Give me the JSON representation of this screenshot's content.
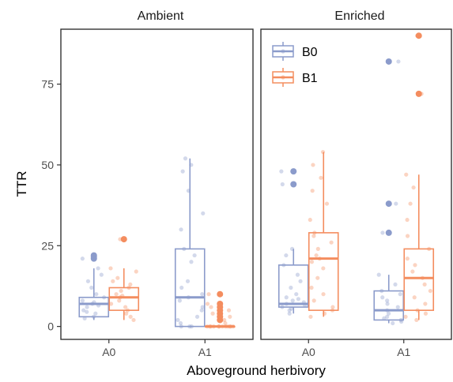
{
  "chart_data": {
    "type": "box",
    "xlabel": "Aboveground herbivory",
    "ylabel": "TTR",
    "ylim": [
      -4,
      92
    ],
    "yticks": [
      0,
      25,
      50,
      75
    ],
    "categories": [
      "A0",
      "A1"
    ],
    "panels": [
      "Ambient",
      "Enriched"
    ],
    "grid": false,
    "legend": {
      "placement": "top-left of Enriched panel",
      "entries": [
        "B0",
        "B1"
      ]
    },
    "series": [
      {
        "name": "B0",
        "color": "#8b9bcb",
        "boxes": [
          {
            "panel": "Ambient",
            "category": "A0",
            "q1": 3,
            "median": 7,
            "q3": 9,
            "whisker_low": 2,
            "whisker_high": 18,
            "outliers": [
              21,
              21.5,
              22
            ],
            "points": [
              3,
              4,
              5,
              6,
              7,
              7.5,
              8,
              9,
              10,
              12,
              14,
              16,
              18,
              21,
              22,
              4.5,
              6.5,
              2.5
            ]
          },
          {
            "panel": "Ambient",
            "category": "A1",
            "q1": 0,
            "median": 9,
            "q3": 24,
            "whisker_low": 0,
            "whisker_high": 52,
            "outliers": [],
            "points": [
              0,
              0,
              0,
              2,
              5,
              6,
              8,
              9,
              10,
              12,
              14,
              20,
              22,
              24,
              30,
              35,
              42,
              48,
              50,
              52,
              1,
              3
            ]
          },
          {
            "panel": "Enriched",
            "category": "A0",
            "q1": 6,
            "median": 7,
            "q3": 19,
            "whisker_low": 4,
            "whisker_high": 24,
            "outliers": [
              44,
              48
            ],
            "points": [
              4,
              5,
              6,
              6.5,
              7,
              7.5,
              8,
              9,
              10,
              12,
              14,
              16,
              19,
              22,
              24,
              44,
              48,
              5.5,
              8.5
            ]
          },
          {
            "panel": "Enriched",
            "category": "A1",
            "q1": 2,
            "median": 5,
            "q3": 11,
            "whisker_low": 1,
            "whisker_high": 16,
            "outliers": [
              29,
              38,
              82
            ],
            "points": [
              1,
              2,
              2.5,
              3,
              4,
              5,
              6,
              7,
              8,
              9,
              11,
              13,
              16,
              29,
              38,
              82,
              1.5,
              10
            ]
          }
        ]
      },
      {
        "name": "B1",
        "color": "#f48d5f",
        "boxes": [
          {
            "panel": "Ambient",
            "category": "A0",
            "q1": 5,
            "median": 9,
            "q3": 12,
            "whisker_low": 2,
            "whisker_high": 18,
            "outliers": [
              27
            ],
            "points": [
              2,
              3,
              5,
              6,
              7,
              8,
              9,
              10,
              11,
              12,
              13,
              15,
              17,
              18,
              27,
              4,
              9.5,
              14
            ]
          },
          {
            "panel": "Ambient",
            "category": "A1",
            "q1": 0,
            "median": 0,
            "q3": 0,
            "whisker_low": 0,
            "whisker_high": 0,
            "outliers": [
              2,
              3,
              4,
              5,
              6,
              7,
              10
            ],
            "points": [
              0,
              0,
              0,
              0,
              0,
              0,
              0,
              0,
              0,
              0,
              0,
              0,
              1,
              2,
              3,
              4,
              5,
              6,
              7,
              10
            ]
          },
          {
            "panel": "Enriched",
            "category": "A0",
            "q1": 5,
            "median": 21,
            "q3": 29,
            "whisker_low": 3,
            "whisker_high": 54,
            "outliers": [],
            "points": [
              3,
              4,
              5,
              6,
              8,
              10,
              12,
              15,
              18,
              20,
              21,
              22,
              24,
              26,
              28,
              29,
              33,
              38,
              42,
              46,
              50,
              54
            ]
          },
          {
            "panel": "Enriched",
            "category": "A1",
            "q1": 5,
            "median": 15,
            "q3": 24,
            "whisker_low": 2,
            "whisker_high": 47,
            "outliers": [
              72,
              90
            ],
            "points": [
              2,
              3,
              4,
              5,
              7,
              9,
              11,
              13,
              15,
              17,
              19,
              21,
              24,
              28,
              33,
              38,
              43,
              47,
              72,
              90
            ]
          }
        ]
      }
    ]
  }
}
